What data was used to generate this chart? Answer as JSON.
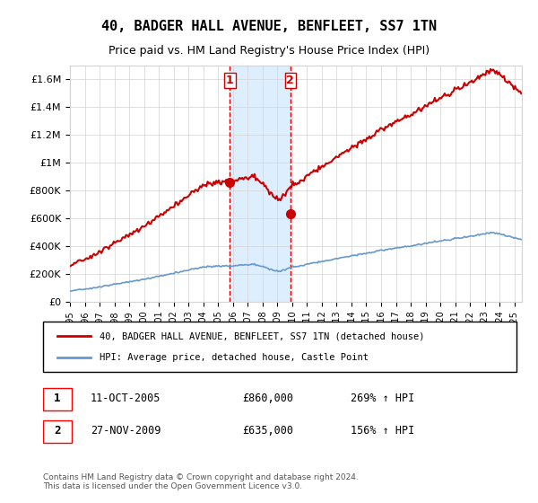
{
  "title": "40, BADGER HALL AVENUE, BENFLEET, SS7 1TN",
  "subtitle": "Price paid vs. HM Land Registry's House Price Index (HPI)",
  "legend_entry1": "40, BADGER HALL AVENUE, BENFLEET, SS7 1TN (detached house)",
  "legend_entry2": "HPI: Average price, detached house, Castle Point",
  "sale1_date": "11-OCT-2005",
  "sale1_price": 860000,
  "sale1_hpi": "269% ↑ HPI",
  "sale2_date": "27-NOV-2009",
  "sale2_price": 635000,
  "sale2_hpi": "156% ↑ HPI",
  "copyright": "Contains HM Land Registry data © Crown copyright and database right 2024.\nThis data is licensed under the Open Government Licence v3.0.",
  "hpi_color": "#6699cc",
  "price_color": "#cc0000",
  "shade_color": "#ddeeff",
  "ylim": [
    0,
    1700000
  ],
  "yticks": [
    0,
    200000,
    400000,
    600000,
    800000,
    1000000,
    1200000,
    1400000,
    1600000
  ],
  "ytick_labels": [
    "£0",
    "£200K",
    "£400K",
    "£600K",
    "£800K",
    "£1M",
    "£1.2M",
    "£1.4M",
    "£1.6M"
  ],
  "year_start": 1995,
  "year_end": 2025
}
